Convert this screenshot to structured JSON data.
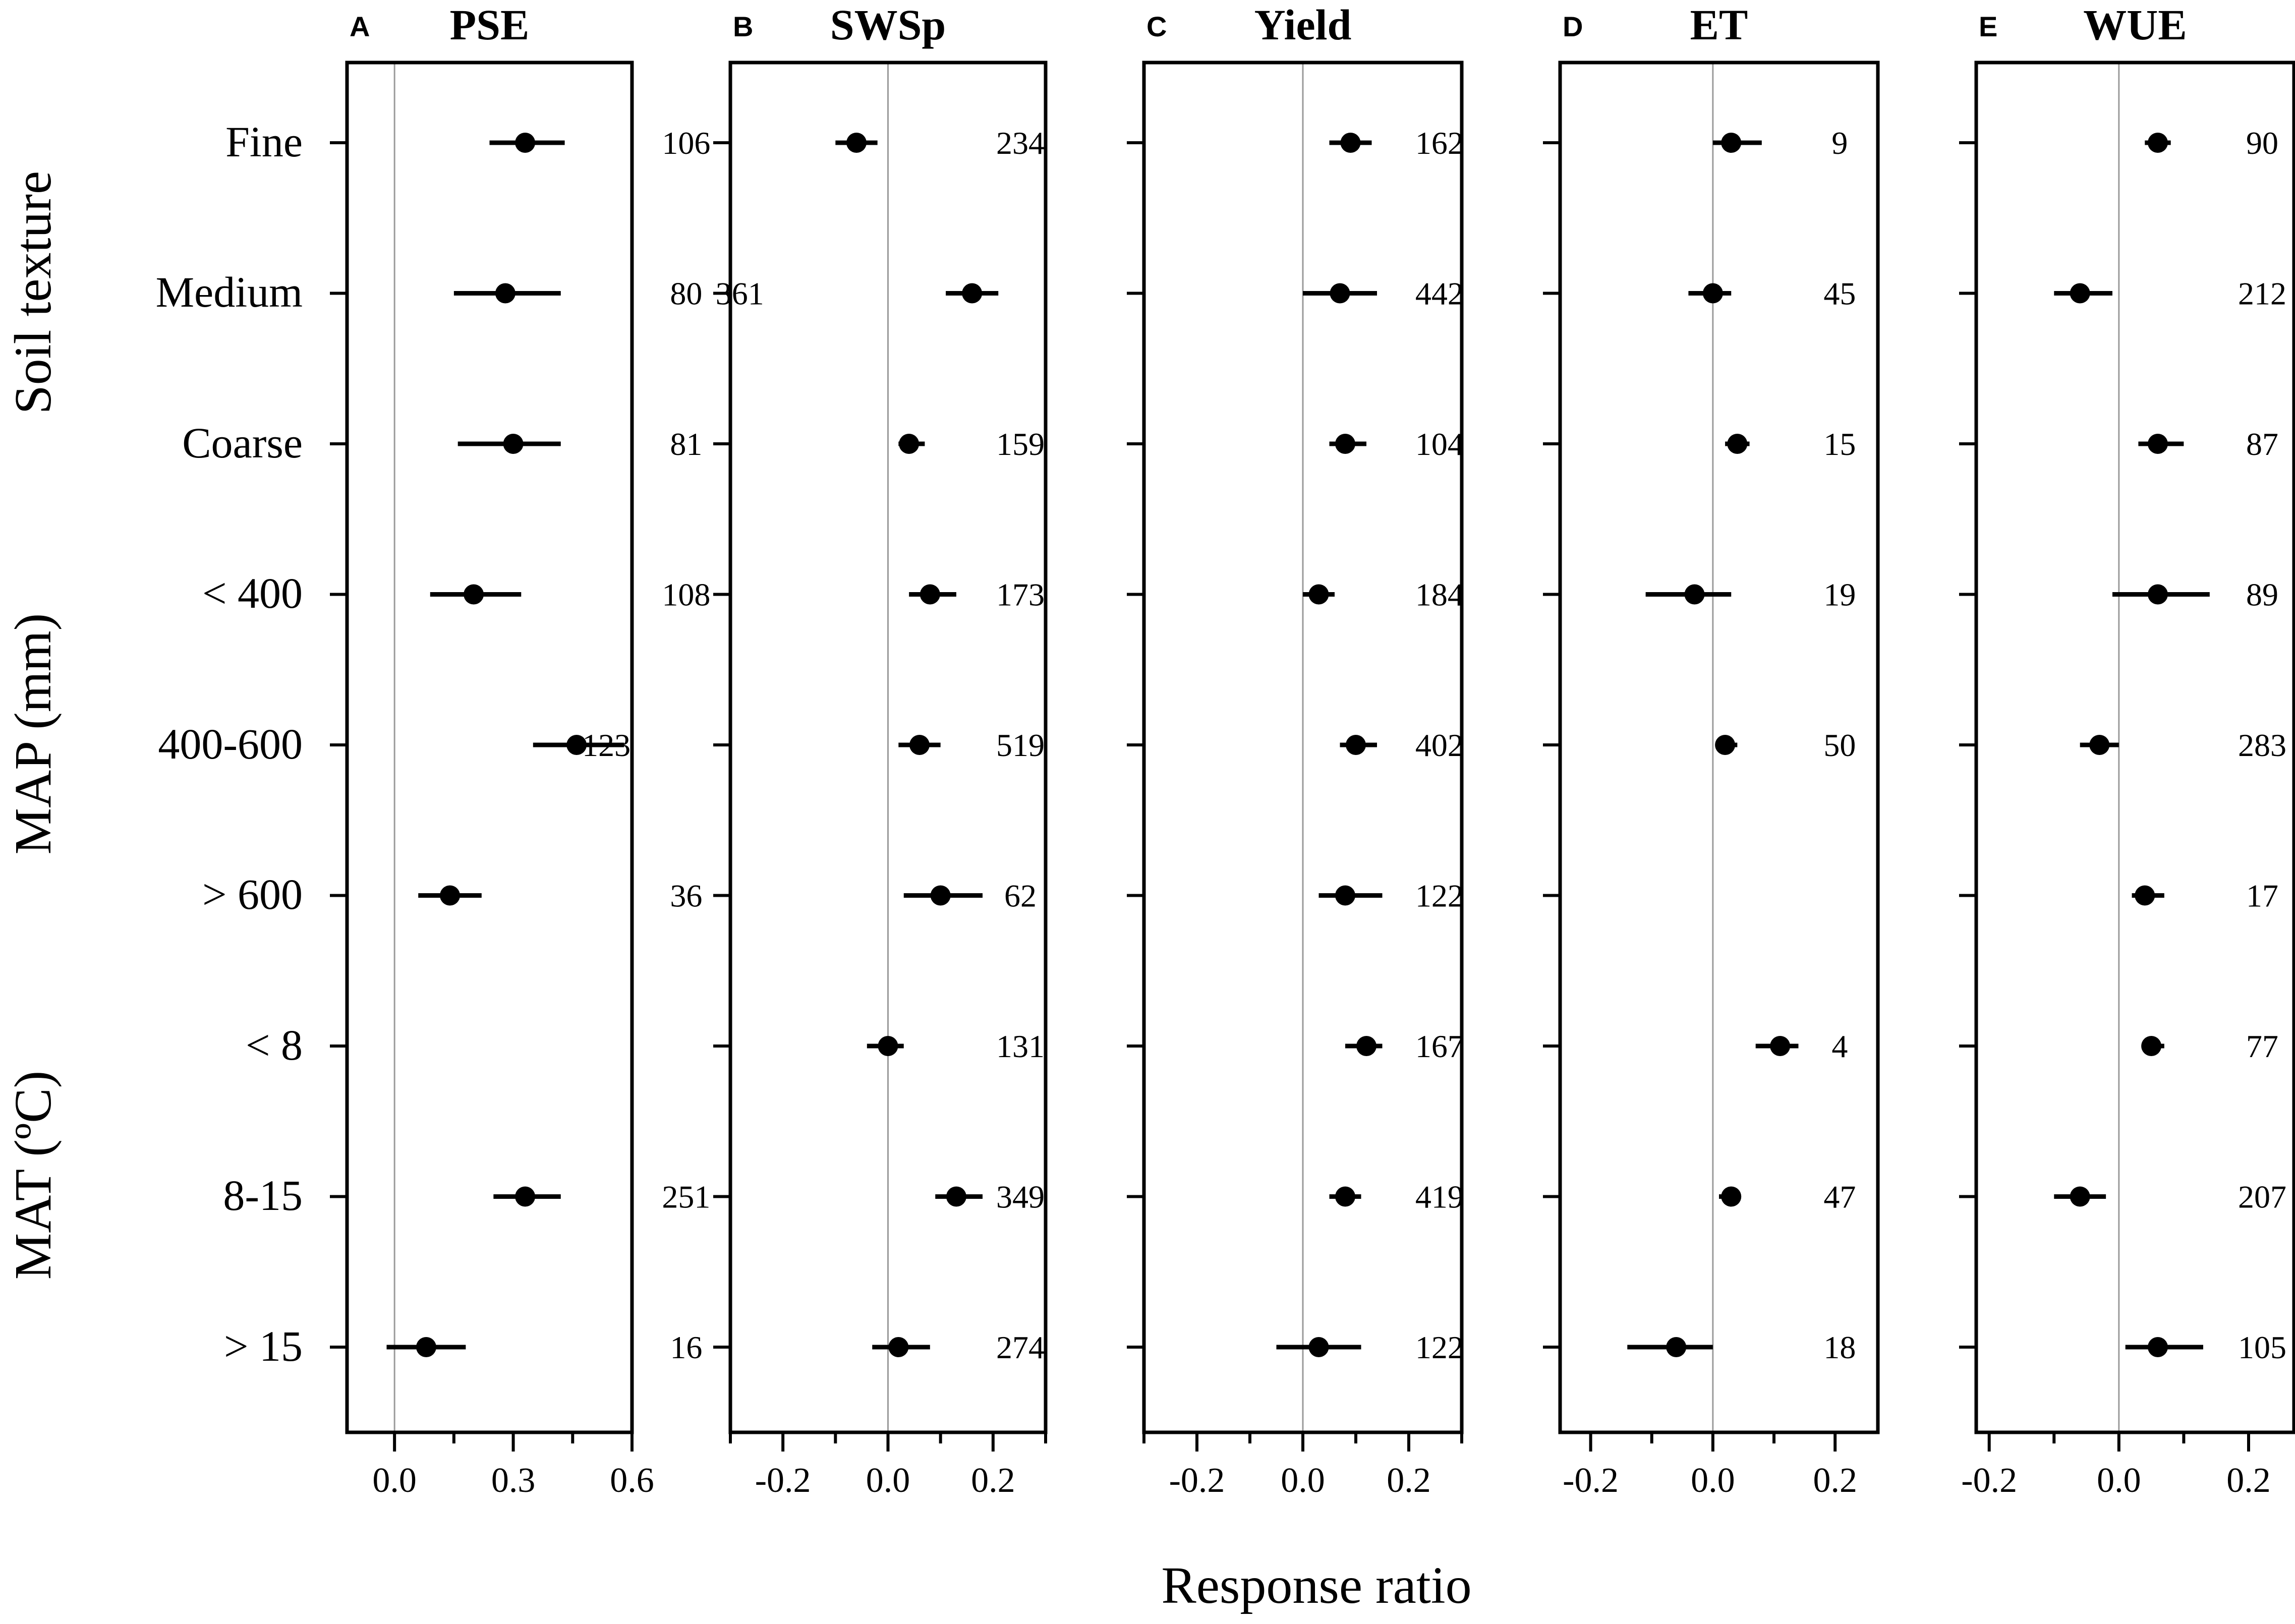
{
  "figure": {
    "xlabel": "Response ratio",
    "row_labels": [
      "Fine",
      "Medium",
      "Coarse",
      "< 400",
      "400-600",
      "> 600",
      "< 8",
      "8-15",
      "> 15"
    ],
    "group_labels": [
      "Soil texture",
      "MAP (mm)",
      "MAT (ºC)"
    ]
  },
  "chart_data": [
    {
      "type": "scatter",
      "letter": "A",
      "title": "PSE",
      "xlim": [
        -0.12,
        0.6
      ],
      "xticks": [
        0.0,
        0.3,
        0.6
      ],
      "xtick_labels": [
        "0.0",
        "0.3",
        "0.6"
      ],
      "reference_line": 0,
      "points": [
        {
          "category": "Fine",
          "mean": 0.33,
          "ci_low": 0.24,
          "ci_high": 0.43,
          "n": "106",
          "n_x": 0.49
        },
        {
          "category": "Medium",
          "mean": 0.28,
          "ci_low": 0.15,
          "ci_high": 0.42,
          "n": "80",
          "n_x": 0.49
        },
        {
          "category": "Coarse",
          "mean": 0.3,
          "ci_low": 0.16,
          "ci_high": 0.42,
          "n": "81",
          "n_x": 0.49
        },
        {
          "category": "< 400",
          "mean": 0.2,
          "ci_low": 0.09,
          "ci_high": 0.32,
          "n": "108",
          "n_x": 0.49
        },
        {
          "category": "400-600",
          "mean": 0.46,
          "ci_low": 0.35,
          "ci_high": 0.58,
          "n": "123",
          "n_x": 0.21
        },
        {
          "category": "> 600",
          "mean": 0.14,
          "ci_low": 0.06,
          "ci_high": 0.22,
          "n": "36",
          "n_x": 0.49
        },
        {
          "category": "< 8",
          "mean": null,
          "ci_low": null,
          "ci_high": null,
          "n": "",
          "n_x": 0.49
        },
        {
          "category": "8-15",
          "mean": 0.33,
          "ci_low": 0.25,
          "ci_high": 0.42,
          "n": "251",
          "n_x": 0.49
        },
        {
          "category": "> 15",
          "mean": 0.08,
          "ci_low": -0.02,
          "ci_high": 0.18,
          "n": "16",
          "n_x": 0.49
        }
      ]
    },
    {
      "type": "scatter",
      "letter": "B",
      "title": "SWSp",
      "xlim": [
        -0.3,
        0.3
      ],
      "xticks": [
        -0.2,
        0.0,
        0.2
      ],
      "xtick_labels": [
        "-0.2",
        "0.0",
        "0.2"
      ],
      "reference_line": 0,
      "points": [
        {
          "category": "Fine",
          "mean": -0.06,
          "ci_low": -0.1,
          "ci_high": -0.02,
          "n": "234",
          "n_x": 0.22
        },
        {
          "category": "Medium",
          "mean": 0.16,
          "ci_low": 0.11,
          "ci_high": 0.21,
          "n": "361",
          "n_x": 0.03
        },
        {
          "category": "Coarse",
          "mean": 0.04,
          "ci_low": 0.02,
          "ci_high": 0.07,
          "n": "159",
          "n_x": 0.22
        },
        {
          "category": "< 400",
          "mean": 0.08,
          "ci_low": 0.04,
          "ci_high": 0.13,
          "n": "173",
          "n_x": 0.22
        },
        {
          "category": "400-600",
          "mean": 0.06,
          "ci_low": 0.02,
          "ci_high": 0.1,
          "n": "519",
          "n_x": 0.22
        },
        {
          "category": "> 600",
          "mean": 0.1,
          "ci_low": 0.03,
          "ci_high": 0.18,
          "n": "62",
          "n_x": 0.22
        },
        {
          "category": "< 8",
          "mean": 0.0,
          "ci_low": -0.04,
          "ci_high": 0.03,
          "n": "131",
          "n_x": 0.22
        },
        {
          "category": "8-15",
          "mean": 0.13,
          "ci_low": 0.09,
          "ci_high": 0.18,
          "n": "349",
          "n_x": 0.22
        },
        {
          "category": "> 15",
          "mean": 0.02,
          "ci_low": -0.03,
          "ci_high": 0.08,
          "n": "274",
          "n_x": 0.22
        }
      ]
    },
    {
      "type": "scatter",
      "letter": "C",
      "title": "Yield",
      "xlim": [
        -0.3,
        0.3
      ],
      "xticks": [
        -0.2,
        0.0,
        0.2
      ],
      "xtick_labels": [
        "-0.2",
        "0.0",
        "0.2"
      ],
      "reference_line": 0,
      "points": [
        {
          "category": "Fine",
          "mean": 0.09,
          "ci_low": 0.05,
          "ci_high": 0.13,
          "n": "162",
          "n_x": 0.23
        },
        {
          "category": "Medium",
          "mean": 0.07,
          "ci_low": 0.0,
          "ci_high": 0.14,
          "n": "442",
          "n_x": 0.23
        },
        {
          "category": "Coarse",
          "mean": 0.08,
          "ci_low": 0.05,
          "ci_high": 0.12,
          "n": "104",
          "n_x": 0.23
        },
        {
          "category": "< 400",
          "mean": 0.03,
          "ci_low": 0.0,
          "ci_high": 0.06,
          "n": "184",
          "n_x": 0.23
        },
        {
          "category": "400-600",
          "mean": 0.1,
          "ci_low": 0.07,
          "ci_high": 0.14,
          "n": "402",
          "n_x": 0.23
        },
        {
          "category": "> 600",
          "mean": 0.08,
          "ci_low": 0.03,
          "ci_high": 0.15,
          "n": "122",
          "n_x": 0.23
        },
        {
          "category": "< 8",
          "mean": 0.12,
          "ci_low": 0.08,
          "ci_high": 0.15,
          "n": "167",
          "n_x": 0.23
        },
        {
          "category": "8-15",
          "mean": 0.08,
          "ci_low": 0.05,
          "ci_high": 0.11,
          "n": "419",
          "n_x": 0.23
        },
        {
          "category": "> 15",
          "mean": 0.03,
          "ci_low": -0.05,
          "ci_high": 0.11,
          "n": "122",
          "n_x": 0.23
        }
      ]
    },
    {
      "type": "scatter",
      "letter": "D",
      "title": "ET",
      "xlim": [
        -0.25,
        0.27
      ],
      "xticks": [
        -0.2,
        0.0,
        0.2
      ],
      "xtick_labels": [
        "-0.2",
        "0.0",
        "0.2"
      ],
      "reference_line": 0,
      "points": [
        {
          "category": "Fine",
          "mean": 0.03,
          "ci_low": 0.0,
          "ci_high": 0.08,
          "n": "9",
          "n_x": 0.18
        },
        {
          "category": "Medium",
          "mean": 0.0,
          "ci_low": -0.04,
          "ci_high": 0.03,
          "n": "45",
          "n_x": 0.18
        },
        {
          "category": "Coarse",
          "mean": 0.04,
          "ci_low": 0.02,
          "ci_high": 0.06,
          "n": "15",
          "n_x": 0.18
        },
        {
          "category": "< 400",
          "mean": -0.03,
          "ci_low": -0.11,
          "ci_high": 0.03,
          "n": "19",
          "n_x": 0.18
        },
        {
          "category": "400-600",
          "mean": 0.02,
          "ci_low": 0.01,
          "ci_high": 0.04,
          "n": "50",
          "n_x": 0.18
        },
        {
          "category": "> 600",
          "mean": null,
          "ci_low": null,
          "ci_high": null,
          "n": "",
          "n_x": 0.18
        },
        {
          "category": "< 8",
          "mean": 0.11,
          "ci_low": 0.07,
          "ci_high": 0.14,
          "n": "4",
          "n_x": 0.18
        },
        {
          "category": "8-15",
          "mean": 0.03,
          "ci_low": 0.01,
          "ci_high": 0.04,
          "n": "47",
          "n_x": 0.18
        },
        {
          "category": "> 15",
          "mean": -0.06,
          "ci_low": -0.14,
          "ci_high": 0.0,
          "n": "18",
          "n_x": 0.18
        }
      ]
    },
    {
      "type": "scatter",
      "letter": "E",
      "title": "WUE",
      "xlim": [
        -0.22,
        0.27
      ],
      "xticks": [
        -0.2,
        0.0,
        0.2
      ],
      "xtick_labels": [
        "-0.2",
        "0.0",
        "0.2"
      ],
      "reference_line": 0,
      "points": [
        {
          "category": "Fine",
          "mean": 0.06,
          "ci_low": 0.04,
          "ci_high": 0.08,
          "n": "90",
          "n_x": 0.2
        },
        {
          "category": "Medium",
          "mean": -0.06,
          "ci_low": -0.1,
          "ci_high": -0.01,
          "n": "212",
          "n_x": 0.2
        },
        {
          "category": "Coarse",
          "mean": 0.06,
          "ci_low": 0.03,
          "ci_high": 0.1,
          "n": "87",
          "n_x": 0.2
        },
        {
          "category": "< 400",
          "mean": 0.06,
          "ci_low": -0.01,
          "ci_high": 0.14,
          "n": "89",
          "n_x": 0.2
        },
        {
          "category": "400-600",
          "mean": -0.03,
          "ci_low": -0.06,
          "ci_high": 0.0,
          "n": "283",
          "n_x": 0.2
        },
        {
          "category": "> 600",
          "mean": 0.04,
          "ci_low": 0.02,
          "ci_high": 0.07,
          "n": "17",
          "n_x": 0.2
        },
        {
          "category": "< 8",
          "mean": 0.05,
          "ci_low": 0.04,
          "ci_high": 0.07,
          "n": "77",
          "n_x": 0.2
        },
        {
          "category": "8-15",
          "mean": -0.06,
          "ci_low": -0.1,
          "ci_high": -0.02,
          "n": "207",
          "n_x": 0.2
        },
        {
          "category": "> 15",
          "mean": 0.06,
          "ci_low": 0.01,
          "ci_high": 0.13,
          "n": "105",
          "n_x": 0.2
        }
      ]
    }
  ]
}
